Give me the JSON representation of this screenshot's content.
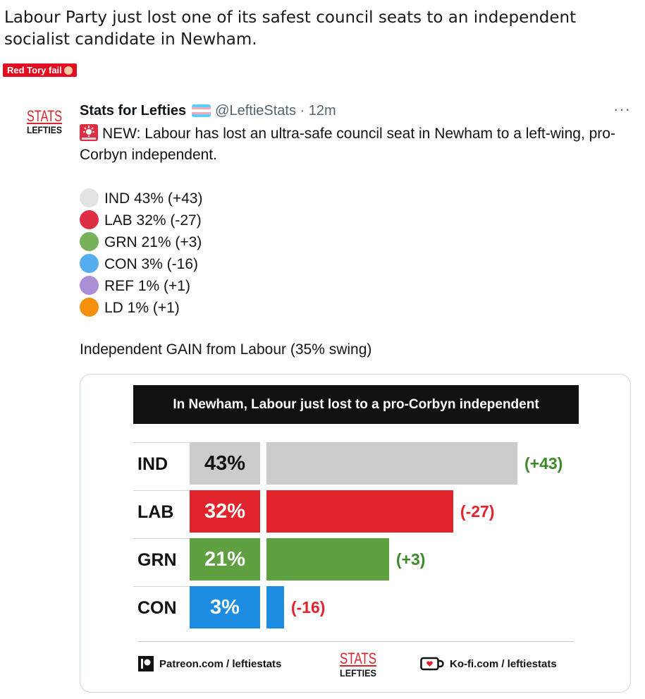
{
  "post": {
    "title": "Labour Party just lost one of its safest council seats to an independent socialist candidate in Newham.",
    "flair": "Red Tory fail"
  },
  "tweet": {
    "logo_line1": "STATS",
    "logo_line2": "LEFTIES",
    "author_name": "Stats for Lefties",
    "handle": "@LeftieStats",
    "separator": "·",
    "time": "12m",
    "more": "···",
    "text": "NEW: Labour has lost an ultra-safe council seat in Newham to a left-wing, pro-Corbyn independent.",
    "results": [
      {
        "party": "IND",
        "share": "43%",
        "change": "(+43)",
        "color": "#e1e3e5",
        "text": "IND 43% (+43)"
      },
      {
        "party": "LAB",
        "share": "32%",
        "change": "(-27)",
        "color": "#dd2e44",
        "text": "LAB 32% (-27)"
      },
      {
        "party": "GRN",
        "share": "21%",
        "change": "(+3)",
        "color": "#78b159",
        "text": "GRN 21% (+3)"
      },
      {
        "party": "CON",
        "share": "3%",
        "change": "(-16)",
        "color": "#55acee",
        "text": "CON 3% (-16)"
      },
      {
        "party": "REF",
        "share": "1%",
        "change": "(+1)",
        "color": "#aa8ed6",
        "text": "REF 1% (+1)"
      },
      {
        "party": "LD",
        "share": "1%",
        "change": "(+1)",
        "color": "#f4900c",
        "text": "LD 1% (+1)"
      }
    ],
    "summary": "Independent GAIN from Labour (35% swing)"
  },
  "chart_data": {
    "type": "bar",
    "title": "In Newham, Labour just lost to a pro-Corbyn independent",
    "categories": [
      "IND",
      "LAB",
      "GRN",
      "CON"
    ],
    "values": [
      43,
      32,
      21,
      3
    ],
    "value_labels": [
      "43%",
      "32%",
      "21%",
      "3%"
    ],
    "changes": [
      43,
      -27,
      3,
      -16
    ],
    "change_labels": [
      "(+43)",
      "(-27)",
      "(+3)",
      "(-16)"
    ],
    "colors": [
      "#cccccc",
      "#e1242b",
      "#5fa140",
      "#1c8de0"
    ],
    "label_colors": [
      "#111111",
      "#ffffff",
      "#ffffff",
      "#ffffff"
    ],
    "positive_color": "#3e8a2a",
    "negative_color": "#e1242b",
    "xlim": [
      0,
      43
    ],
    "orientation": "horizontal",
    "grid": false,
    "footer": {
      "patreon": "Patreon.com / leftiestats",
      "kofi": "Ko-fi.com / leftiestats",
      "logo_line1": "STATS",
      "logo_line2": "LEFTIES"
    }
  }
}
